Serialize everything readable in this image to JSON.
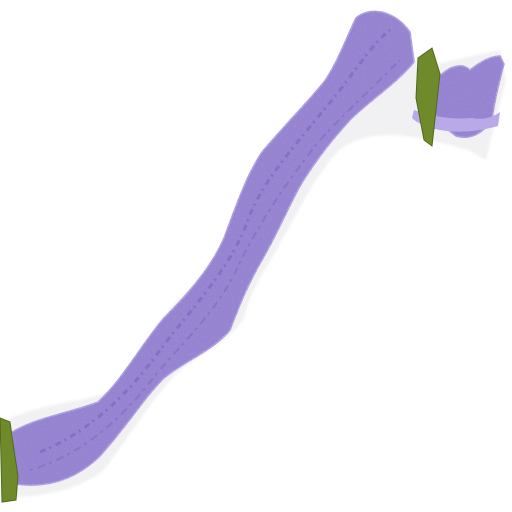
{
  "image": {
    "kind": "histology-slide-thumbnail",
    "stain": "H&E",
    "background_color": "#ffffff",
    "colors": {
      "tissue_base": "#9a86d6",
      "tissue_dark": "#6f58b8",
      "tissue_light": "#b9a9e8",
      "halo": "#f1f1f3",
      "marker_green": "#6f8a2a",
      "marker_green_dark": "#4f6a1a"
    },
    "regions": [
      {
        "name": "core-biopsy-strip"
      },
      {
        "name": "detached-fragment"
      },
      {
        "name": "ink-marker-upper-right"
      },
      {
        "name": "ink-marker-lower-left"
      }
    ]
  }
}
